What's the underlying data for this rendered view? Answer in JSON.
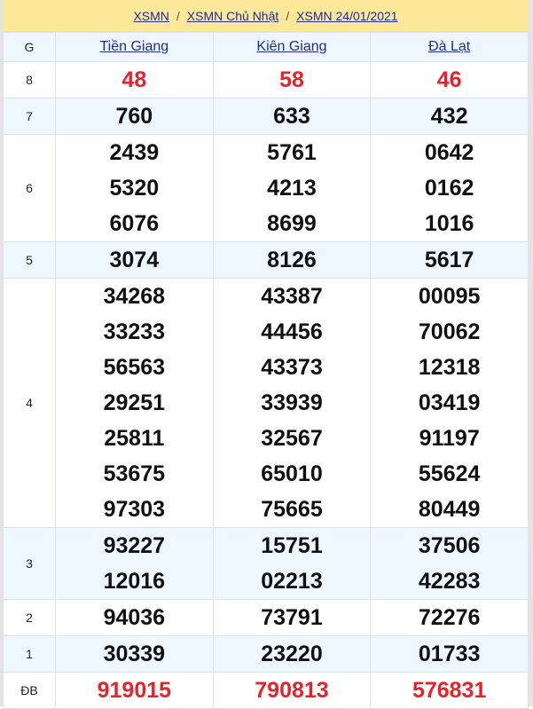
{
  "breadcrumb": [
    "XSMN",
    "XSMN Chủ Nhật",
    "XSMN 24/01/2021"
  ],
  "breadcrumb_sep": "/",
  "header": {
    "g_label": "G",
    "provinces": [
      "Tiền Giang",
      "Kiên Giang",
      "Đà Lạt"
    ]
  },
  "colors": {
    "highlight": "#e8222b",
    "link": "#1c2e91",
    "breadcrumb_bg": "#fde89a",
    "alt_row": "#eef6ff"
  },
  "rows": [
    {
      "g": "8",
      "red": true,
      "values": [
        [
          "48"
        ],
        [
          "58"
        ],
        [
          "46"
        ]
      ]
    },
    {
      "g": "7",
      "values": [
        [
          "760"
        ],
        [
          "633"
        ],
        [
          "432"
        ]
      ]
    },
    {
      "g": "6",
      "values": [
        [
          "2439",
          "5320",
          "6076"
        ],
        [
          "5761",
          "4213",
          "8699"
        ],
        [
          "0642",
          "0162",
          "1016"
        ]
      ]
    },
    {
      "g": "5",
      "values": [
        [
          "3074"
        ],
        [
          "8126"
        ],
        [
          "5617"
        ]
      ]
    },
    {
      "g": "4",
      "values": [
        [
          "34268",
          "33233",
          "56563",
          "29251",
          "25811",
          "53675",
          "97303"
        ],
        [
          "43387",
          "44456",
          "43373",
          "33939",
          "32567",
          "65010",
          "75665"
        ],
        [
          "00095",
          "70062",
          "12318",
          "03419",
          "91197",
          "55624",
          "80449"
        ]
      ]
    },
    {
      "g": "3",
      "values": [
        [
          "93227",
          "12016"
        ],
        [
          "15751",
          "02213"
        ],
        [
          "37506",
          "42283"
        ]
      ]
    },
    {
      "g": "2",
      "values": [
        [
          "94036"
        ],
        [
          "73791"
        ],
        [
          "72276"
        ]
      ]
    },
    {
      "g": "1",
      "values": [
        [
          "30339"
        ],
        [
          "23220"
        ],
        [
          "01733"
        ]
      ]
    },
    {
      "g": "ĐB",
      "red": true,
      "values": [
        [
          "919015"
        ],
        [
          "790813"
        ],
        [
          "576831"
        ]
      ]
    }
  ]
}
